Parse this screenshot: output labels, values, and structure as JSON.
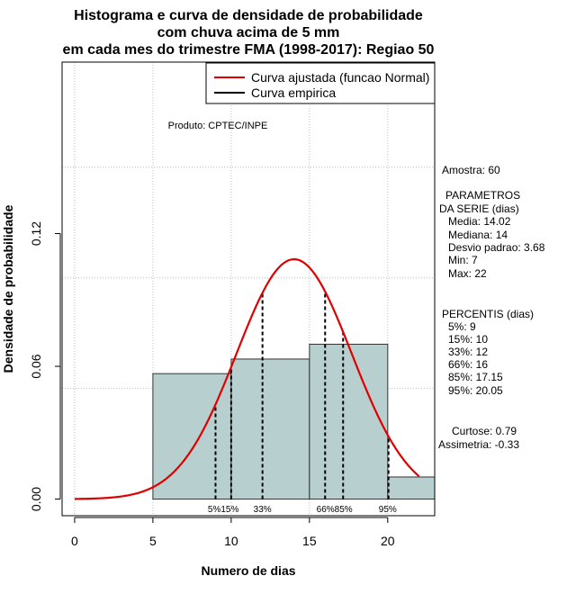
{
  "chart_data": {
    "type": "bar",
    "title_lines": [
      "Histograma e curva de densidade de probabilidade",
      "com chuva acima de 5 mm",
      "em cada mes do trimestre FMA (1998-2017): Regiao 50"
    ],
    "xlabel": "Numero de dias",
    "ylabel": "Densidade de probabilidade",
    "xlim": [
      -0.8,
      23
    ],
    "ylim": [
      -0.0075,
      0.1975
    ],
    "x_ticks": [
      0,
      5,
      10,
      15,
      20
    ],
    "y_ticks": [
      0.0,
      0.06,
      0.12
    ],
    "y_tick_labels": [
      "0.00",
      "0.06",
      "0.12"
    ],
    "x_grid": [
      0,
      5,
      10,
      15,
      20
    ],
    "y_grid": [
      0.05,
      0.1,
      0.15
    ],
    "histogram": [
      {
        "x0": 5,
        "x1": 10,
        "density": 0.0567
      },
      {
        "x0": 10,
        "x1": 15,
        "density": 0.0633
      },
      {
        "x0": 15,
        "x1": 20,
        "density": 0.07
      },
      {
        "x0": 20,
        "x1": 25,
        "density": 0.01
      }
    ],
    "normal_fit": {
      "mean": 14.02,
      "sd": 3.68,
      "x_from": 0,
      "x_to": 22
    },
    "percentile_lines": [
      {
        "x": 9,
        "label": "5%"
      },
      {
        "x": 10,
        "label": "15%"
      },
      {
        "x": 12,
        "label": "33%"
      },
      {
        "x": 16,
        "label": "66%"
      },
      {
        "x": 17.15,
        "label": "85%"
      },
      {
        "x": 20.05,
        "label": "95%"
      }
    ],
    "percentile_label_groups": [
      {
        "x": 9.5,
        "text": "5%15%"
      },
      {
        "x": 12,
        "text": "33%"
      },
      {
        "x": 16.6,
        "text": "66%85%"
      },
      {
        "x": 20,
        "text": "95%"
      }
    ],
    "legend": {
      "position": "top-right",
      "entries": [
        {
          "label": "Curva ajustada (funcao Normal)",
          "color": "#e00000"
        },
        {
          "label": "Curva empirica",
          "color": "#000000"
        }
      ]
    },
    "product_note": "Produto: CPTEC/INPE",
    "colors": {
      "bar_fill": "#b8cfcf",
      "curve": "#e00000",
      "grid": "#bdbdbd"
    }
  },
  "stats": {
    "amostra": "Amostra: 60",
    "parametros_title_1": "PARAMETROS",
    "parametros_title_2": "DA SERIE (dias)",
    "media": "Media: 14.02",
    "mediana": "Mediana: 14",
    "desvio": "Desvio padrao: 3.68",
    "min": "Min: 7",
    "max": "Max: 22",
    "percentis_title": "PERCENTIS (dias)",
    "p5": "5%: 9",
    "p15": "15%: 10",
    "p33": "33%: 12",
    "p66": "66%: 16",
    "p85": "85%: 17.15",
    "p95": "95%: 20.05",
    "curtose": "Curtose: 0.79",
    "assimetria": "Assimetria: -0.33"
  }
}
